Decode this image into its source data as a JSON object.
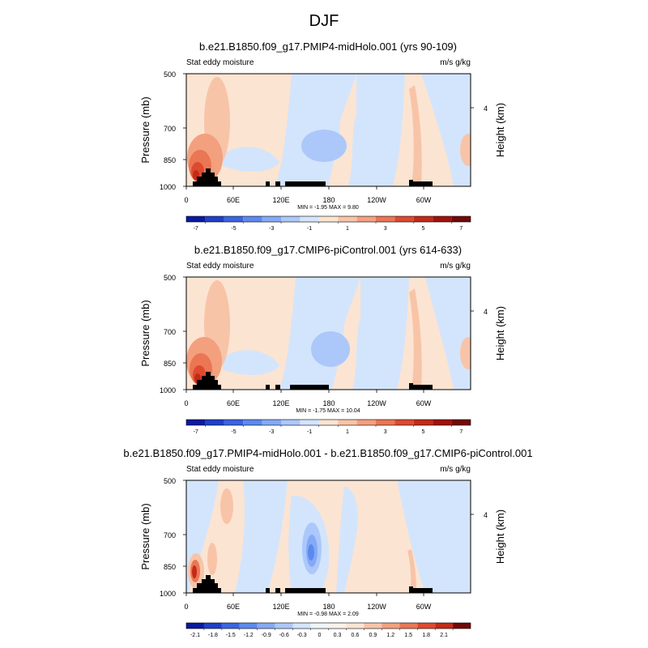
{
  "figure": {
    "title": "DJF"
  },
  "chart_data": [
    {
      "type": "heatmap",
      "title": "b.e21.B1850.f09_g17.PMIP4-midHolo.001 (yrs 90-109)",
      "left_label": "Stat eddy moisture",
      "right_label": "m/s g/kg",
      "ylabel": "Pressure (mb)",
      "ylabel_right": "Height (km)",
      "xticks": [
        "0",
        "60E",
        "120E",
        "180",
        "120W",
        "60W"
      ],
      "yticks": [
        "500",
        "700",
        "850",
        "1000"
      ],
      "right_ticks": [
        "4"
      ],
      "stats": "MIN =  -1.95  MAX =   9.80",
      "colorbar_labels": [
        "-7",
        "-5",
        "-3",
        "-1",
        "1",
        "3",
        "5",
        "7"
      ],
      "ylim": [
        1000,
        500
      ],
      "xlim": [
        0,
        360
      ],
      "features": [
        {
          "lon": 25,
          "p": 880,
          "value": 7.0,
          "desc": "positive maximum near African/Indian sector lower troposphere"
        },
        {
          "lon": 160,
          "p": 760,
          "value": -1.5,
          "desc": "negative center over central Pacific"
        },
        {
          "lon": 290,
          "p": 900,
          "value": 2.0,
          "desc": "positive band near South America"
        }
      ]
    },
    {
      "type": "heatmap",
      "title": "b.e21.B1850.f09_g17.CMIP6-piControl.001 (yrs 614-633)",
      "left_label": "Stat eddy moisture",
      "right_label": "m/s g/kg",
      "ylabel": "Pressure (mb)",
      "ylabel_right": "Height (km)",
      "xticks": [
        "0",
        "60E",
        "120E",
        "180",
        "120W",
        "60W"
      ],
      "yticks": [
        "500",
        "700",
        "850",
        "1000"
      ],
      "right_ticks": [
        "4"
      ],
      "stats": "MIN =  -1.75  MAX =  10.04",
      "colorbar_labels": [
        "-7",
        "-5",
        "-3",
        "-1",
        "1",
        "3",
        "5",
        "7"
      ],
      "ylim": [
        1000,
        500
      ],
      "xlim": [
        0,
        360
      ],
      "features": [
        {
          "lon": 25,
          "p": 880,
          "value": 7.5,
          "desc": "positive maximum near African/Indian sector lower troposphere"
        },
        {
          "lon": 165,
          "p": 760,
          "value": -1.5,
          "desc": "negative center over central Pacific"
        },
        {
          "lon": 290,
          "p": 900,
          "value": 2.0,
          "desc": "positive band near South America"
        }
      ]
    },
    {
      "type": "heatmap",
      "title": "b.e21.B1850.f09_g17.PMIP4-midHolo.001 - b.e21.B1850.f09_g17.CMIP6-piControl.001",
      "left_label": "Stat eddy moisture",
      "right_label": "m/s g/kg",
      "ylabel": "Pressure (mb)",
      "ylabel_right": "Height (km)",
      "xticks": [
        "0",
        "60E",
        "120E",
        "180",
        "120W",
        "60W"
      ],
      "yticks": [
        "500",
        "700",
        "850",
        "1000"
      ],
      "right_ticks": [
        "4"
      ],
      "stats": "MIN =  -0.98  MAX =   2.09",
      "colorbar_labels": [
        "-2.1",
        "-1.8",
        "-1.5",
        "-1.2",
        "-0.9",
        "-0.6",
        "-0.3",
        "0",
        "0.3",
        "0.6",
        "0.9",
        "1.2",
        "1.5",
        "1.8",
        "2.1"
      ],
      "ylim": [
        1000,
        500
      ],
      "xlim": [
        0,
        360
      ],
      "features": [
        {
          "lon": 10,
          "p": 880,
          "value": 1.8,
          "desc": "positive maximum at low levels near 10E"
        },
        {
          "lon": 155,
          "p": 810,
          "value": -0.9,
          "desc": "negative center over central Pacific"
        }
      ]
    }
  ],
  "colors": {
    "colormap": [
      "#0a1aa0",
      "#1f3fc8",
      "#3a64e4",
      "#5b8aef",
      "#85aaf5",
      "#acc8fa",
      "#d3e5fc",
      "#fce4d2",
      "#f8c4a8",
      "#f3a07e",
      "#ea7654",
      "#dd4a30",
      "#c42a18",
      "#a0120c",
      "#720808"
    ],
    "topography": "#000000"
  }
}
